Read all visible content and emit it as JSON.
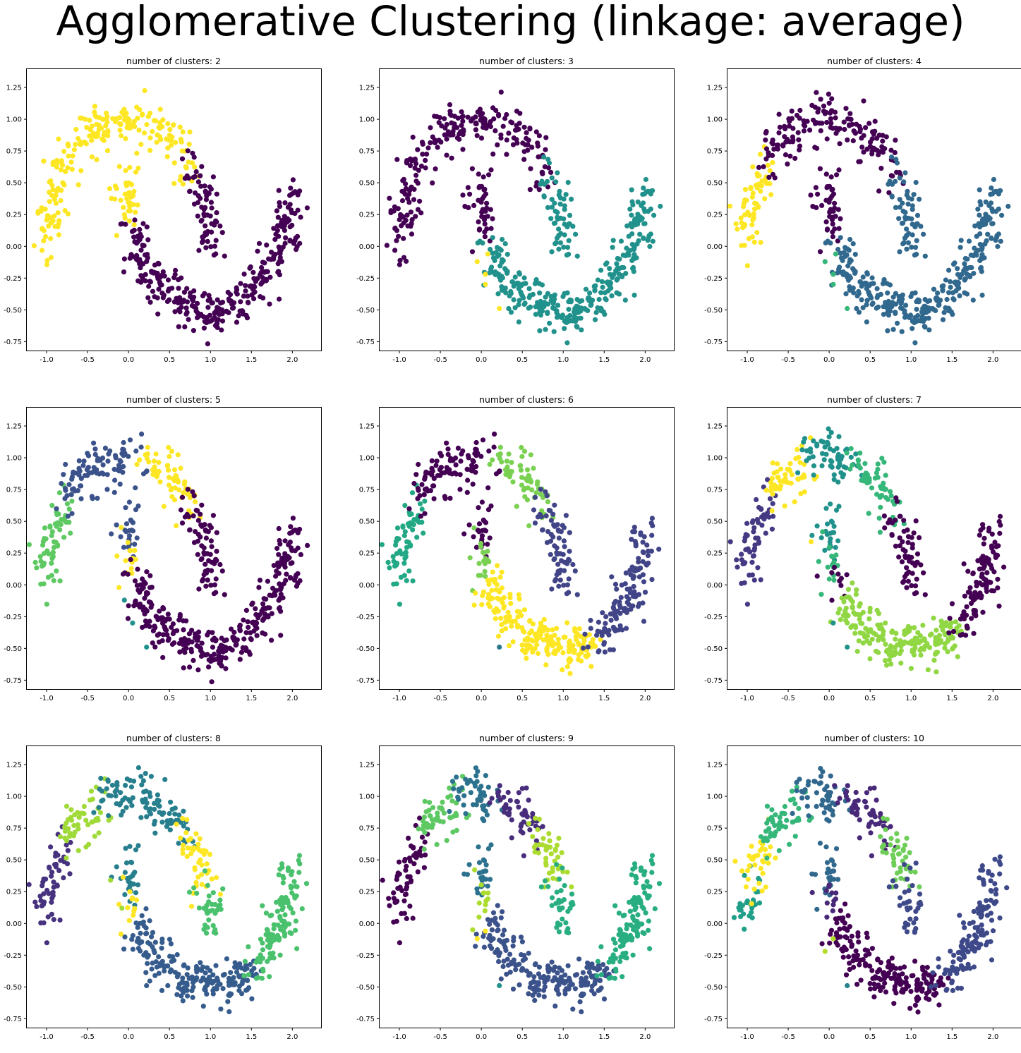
{
  "figure": {
    "title": "Agglomerative Clustering (linkage: average)"
  },
  "palette": {
    "2": [
      "#440154",
      "#fde725"
    ],
    "3": [
      "#440154",
      "#21918c",
      "#fde725"
    ],
    "4": [
      "#440154",
      "#31688e",
      "#35b779",
      "#fde725"
    ],
    "5": [
      "#440154",
      "#3b528b",
      "#21918c",
      "#5ec962",
      "#fde725"
    ],
    "6": [
      "#440154",
      "#414487",
      "#2a788e",
      "#22a884",
      "#7ad151",
      "#fde725"
    ],
    "7": [
      "#440154",
      "#443983",
      "#31688e",
      "#21918c",
      "#35b779",
      "#90d743",
      "#fde725"
    ],
    "8": [
      "#440154",
      "#46327e",
      "#365c8d",
      "#277f8e",
      "#1fa187",
      "#4ac16d",
      "#a0da39",
      "#fde725"
    ],
    "9": [
      "#440154",
      "#472d7b",
      "#3b528b",
      "#2c728e",
      "#21918c",
      "#28ae80",
      "#5ec962",
      "#addc30",
      "#fde725"
    ],
    "10": [
      "#440154",
      "#482878",
      "#3e4989",
      "#31688e",
      "#26828e",
      "#1f9e89",
      "#35b779",
      "#6ece58",
      "#b5de2b",
      "#fde725"
    ]
  },
  "chart_data": [
    {
      "type": "scatter",
      "title": "number of clusters: 2",
      "n_clusters": 2,
      "xlim": [
        -1.25,
        2.35
      ],
      "ylim": [
        -0.82,
        1.4
      ],
      "xticks": [
        "-1.0",
        "-0.5",
        "0.0",
        "0.5",
        "1.0",
        "1.5",
        "2.0"
      ],
      "yticks": [
        "-0.75",
        "-0.50",
        "-0.25",
        "0.00",
        "0.25",
        "0.50",
        "0.75",
        "1.00",
        "1.25"
      ],
      "segments": [
        {
          "t0": 0.0,
          "t1": 0.78,
          "c": 1,
          "n": 210
        },
        {
          "t0": 0.78,
          "t1": 1.0,
          "c": 0,
          "n": 70
        },
        {
          "t0": 0.0,
          "t1": 0.08,
          "c": 1,
          "n": 40
        },
        {
          "t0": 0.08,
          "t1": 1.0,
          "c": 0,
          "n": 330
        }
      ]
    },
    {
      "type": "scatter",
      "title": "number of clusters: 3",
      "n_clusters": 3,
      "xlim": [
        -1.25,
        2.35
      ],
      "ylim": [
        -0.82,
        1.4
      ],
      "xticks": [
        "-1.0",
        "-0.5",
        "0.0",
        "0.5",
        "1.0",
        "1.5",
        "2.0"
      ],
      "yticks": [
        "-0.75",
        "-0.50",
        "-0.25",
        "0.00",
        "0.25",
        "0.50",
        "0.75",
        "1.00",
        "1.25"
      ],
      "segments": [
        {
          "t0": 0.0,
          "t1": 0.8,
          "c": 0,
          "n": 220
        },
        {
          "t0": 0.8,
          "t1": 1.0,
          "c": 1,
          "n": 60
        },
        {
          "t0": 0.0,
          "t1": 0.13,
          "c": 0,
          "n": 45
        },
        {
          "t0": 0.13,
          "t1": 1.0,
          "c": 1,
          "n": 320
        }
      ],
      "outliers": [
        {
          "x": -0.05,
          "y": -0.12,
          "c": 2
        },
        {
          "x": 0.05,
          "y": -0.22,
          "c": 2
        },
        {
          "x": 0.08,
          "y": -0.06,
          "c": 2
        },
        {
          "x": 0.05,
          "y": -0.3,
          "c": 2
        },
        {
          "x": 0.22,
          "y": -0.49,
          "c": 2
        }
      ]
    },
    {
      "type": "scatter",
      "title": "number of clusters: 4",
      "n_clusters": 4,
      "xlim": [
        -1.25,
        2.35
      ],
      "ylim": [
        -0.82,
        1.4
      ],
      "xticks": [
        "-1.0",
        "-0.5",
        "0.0",
        "0.5",
        "1.0",
        "1.5",
        "2.0"
      ],
      "yticks": [
        "-0.75",
        "-0.50",
        "-0.25",
        "0.00",
        "0.25",
        "0.50",
        "0.75",
        "1.00",
        "1.25"
      ],
      "segments": [
        {
          "t0": 0.0,
          "t1": 0.23,
          "c": 3,
          "n": 60
        },
        {
          "t0": 0.23,
          "t1": 0.8,
          "c": 0,
          "n": 160
        },
        {
          "t0": 0.8,
          "t1": 1.0,
          "c": 1,
          "n": 60
        },
        {
          "t0": 0.0,
          "t1": 0.13,
          "c": 0,
          "n": 45
        },
        {
          "t0": 0.13,
          "t1": 1.0,
          "c": 1,
          "n": 320
        }
      ],
      "outliers": [
        {
          "x": -0.05,
          "y": -0.12,
          "c": 2
        },
        {
          "x": 0.05,
          "y": -0.22,
          "c": 2
        },
        {
          "x": 0.08,
          "y": -0.06,
          "c": 2
        },
        {
          "x": 0.05,
          "y": -0.3,
          "c": 2
        },
        {
          "x": 0.22,
          "y": -0.49,
          "c": 2
        }
      ]
    },
    {
      "type": "scatter",
      "title": "number of clusters: 5",
      "n_clusters": 5,
      "xlim": [
        -1.25,
        2.35
      ],
      "ylim": [
        -0.82,
        1.4
      ],
      "xticks": [
        "-1.0",
        "-0.5",
        "0.0",
        "0.5",
        "1.0",
        "1.5",
        "2.0"
      ],
      "yticks": [
        "-0.75",
        "-0.50",
        "-0.25",
        "0.00",
        "0.25",
        "0.50",
        "0.75",
        "1.00",
        "1.25"
      ],
      "segments": [
        {
          "t0": 0.0,
          "t1": 0.23,
          "c": 3,
          "n": 60
        },
        {
          "t0": 0.23,
          "t1": 0.55,
          "c": 1,
          "n": 95
        },
        {
          "t0": 0.55,
          "t1": 0.78,
          "c": 4,
          "n": 60
        },
        {
          "t0": 0.78,
          "t1": 1.0,
          "c": 0,
          "n": 70
        },
        {
          "t0": 0.0,
          "t1": 0.06,
          "c": 1,
          "n": 25
        },
        {
          "t0": 0.06,
          "t1": 0.11,
          "c": 4,
          "n": 15
        },
        {
          "t0": 0.11,
          "t1": 1.0,
          "c": 0,
          "n": 330
        }
      ],
      "outliers": [
        {
          "x": -0.05,
          "y": -0.12,
          "c": 2
        },
        {
          "x": 0.05,
          "y": -0.3,
          "c": 2
        },
        {
          "x": 0.22,
          "y": -0.49,
          "c": 2
        }
      ]
    },
    {
      "type": "scatter",
      "title": "number of clusters: 6",
      "n_clusters": 6,
      "xlim": [
        -1.25,
        2.35
      ],
      "ylim": [
        -0.82,
        1.4
      ],
      "xticks": [
        "-1.0",
        "-0.5",
        "0.0",
        "0.5",
        "1.0",
        "1.5",
        "2.0"
      ],
      "yticks": [
        "-0.75",
        "-0.50",
        "-0.25",
        "0.00",
        "0.25",
        "0.50",
        "0.75",
        "1.00",
        "1.25"
      ],
      "segments": [
        {
          "t0": 0.0,
          "t1": 0.23,
          "c": 3,
          "n": 60
        },
        {
          "t0": 0.23,
          "t1": 0.55,
          "c": 0,
          "n": 95
        },
        {
          "t0": 0.55,
          "t1": 0.78,
          "c": 4,
          "n": 60
        },
        {
          "t0": 0.78,
          "t1": 1.0,
          "c": 1,
          "n": 70
        },
        {
          "t0": 0.0,
          "t1": 0.06,
          "c": 0,
          "n": 25
        },
        {
          "t0": 0.06,
          "t1": 0.12,
          "c": 4,
          "n": 18
        },
        {
          "t0": 0.12,
          "t1": 0.62,
          "c": 5,
          "n": 200
        },
        {
          "t0": 0.62,
          "t1": 1.0,
          "c": 1,
          "n": 130
        }
      ],
      "outliers": [
        {
          "x": 0.22,
          "y": -0.49,
          "c": 2
        }
      ]
    },
    {
      "type": "scatter",
      "title": "number of clusters: 7",
      "n_clusters": 7,
      "xlim": [
        -1.25,
        2.35
      ],
      "ylim": [
        -0.82,
        1.4
      ],
      "xticks": [
        "-1.0",
        "-0.5",
        "0.0",
        "0.5",
        "1.0",
        "1.5",
        "2.0"
      ],
      "yticks": [
        "-0.75",
        "-0.50",
        "-0.25",
        "0.00",
        "0.25",
        "0.50",
        "0.75",
        "1.00",
        "1.25"
      ],
      "segments": [
        {
          "t0": 0.0,
          "t1": 0.25,
          "c": 1,
          "n": 60
        },
        {
          "t0": 0.25,
          "t1": 0.42,
          "c": 6,
          "n": 50
        },
        {
          "t0": 0.42,
          "t1": 0.6,
          "c": 3,
          "n": 60
        },
        {
          "t0": 0.6,
          "t1": 0.8,
          "c": 4,
          "n": 55
        },
        {
          "t0": 0.8,
          "t1": 1.0,
          "c": 0,
          "n": 60
        },
        {
          "t0": 0.0,
          "t1": 0.07,
          "c": 3,
          "n": 25
        },
        {
          "t0": 0.07,
          "t1": 0.13,
          "c": 4,
          "n": 15
        },
        {
          "t0": 0.13,
          "t1": 0.17,
          "c": 0,
          "n": 10
        },
        {
          "t0": 0.17,
          "t1": 0.7,
          "c": 5,
          "n": 200
        },
        {
          "t0": 0.7,
          "t1": 1.0,
          "c": 0,
          "n": 110
        }
      ],
      "outliers": [
        {
          "x": -0.22,
          "y": 0.34,
          "c": 6
        },
        {
          "x": 0.05,
          "y": -0.3,
          "c": 3
        },
        {
          "x": 0.22,
          "y": -0.49,
          "c": 3
        }
      ]
    },
    {
      "type": "scatter",
      "title": "number of clusters: 8",
      "n_clusters": 8,
      "xlim": [
        -1.25,
        2.35
      ],
      "ylim": [
        -0.82,
        1.4
      ],
      "xticks": [
        "-1.0",
        "-0.5",
        "0.0",
        "0.5",
        "1.0",
        "1.5",
        "2.0"
      ],
      "yticks": [
        "-0.75",
        "-0.50",
        "-0.25",
        "0.00",
        "0.25",
        "0.50",
        "0.75",
        "1.00",
        "1.25"
      ],
      "segments": [
        {
          "t0": 0.0,
          "t1": 0.22,
          "c": 1,
          "n": 55
        },
        {
          "t0": 0.22,
          "t1": 0.4,
          "c": 6,
          "n": 50
        },
        {
          "t0": 0.4,
          "t1": 0.75,
          "c": 3,
          "n": 100
        },
        {
          "t0": 0.75,
          "t1": 0.9,
          "c": 7,
          "n": 45
        },
        {
          "t0": 0.9,
          "t1": 1.0,
          "c": 5,
          "n": 35
        },
        {
          "t0": 0.0,
          "t1": 0.09,
          "c": 3,
          "n": 28
        },
        {
          "t0": 0.09,
          "t1": 0.13,
          "c": 7,
          "n": 12
        },
        {
          "t0": 0.13,
          "t1": 0.68,
          "c": 2,
          "n": 200
        },
        {
          "t0": 0.68,
          "t1": 1.0,
          "c": 5,
          "n": 125
        }
      ],
      "outliers": [
        {
          "x": -0.22,
          "y": 0.34,
          "c": 6
        },
        {
          "x": -0.08,
          "y": 0.12,
          "c": 6
        },
        {
          "x": 0.22,
          "y": -0.49,
          "c": 2
        }
      ]
    },
    {
      "type": "scatter",
      "title": "number of clusters: 9",
      "n_clusters": 9,
      "xlim": [
        -1.25,
        2.35
      ],
      "ylim": [
        -0.82,
        1.4
      ],
      "xticks": [
        "-1.0",
        "-0.5",
        "0.0",
        "0.5",
        "1.0",
        "1.5",
        "2.0"
      ],
      "yticks": [
        "-0.75",
        "-0.50",
        "-0.25",
        "0.00",
        "0.25",
        "0.50",
        "0.75",
        "1.00",
        "1.25"
      ],
      "segments": [
        {
          "t0": 0.0,
          "t1": 0.25,
          "c": 0,
          "n": 60
        },
        {
          "t0": 0.25,
          "t1": 0.42,
          "c": 6,
          "n": 50
        },
        {
          "t0": 0.42,
          "t1": 0.55,
          "c": 3,
          "n": 50
        },
        {
          "t0": 0.55,
          "t1": 0.75,
          "c": 1,
          "n": 55
        },
        {
          "t0": 0.75,
          "t1": 0.88,
          "c": 7,
          "n": 40
        },
        {
          "t0": 0.88,
          "t1": 1.0,
          "c": 5,
          "n": 35
        },
        {
          "t0": 0.0,
          "t1": 0.07,
          "c": 3,
          "n": 25
        },
        {
          "t0": 0.07,
          "t1": 0.12,
          "c": 7,
          "n": 12
        },
        {
          "t0": 0.12,
          "t1": 0.68,
          "c": 2,
          "n": 200
        },
        {
          "t0": 0.68,
          "t1": 1.0,
          "c": 5,
          "n": 125
        }
      ],
      "outliers": [
        {
          "x": -0.05,
          "y": -0.12,
          "c": 8
        },
        {
          "x": 0.05,
          "y": -0.06,
          "c": 8
        },
        {
          "x": 0.22,
          "y": -0.49,
          "c": 4
        }
      ]
    },
    {
      "type": "scatter",
      "title": "number of clusters: 10",
      "n_clusters": 10,
      "xlim": [
        -1.25,
        2.35
      ],
      "ylim": [
        -0.82,
        1.4
      ],
      "xticks": [
        "-1.0",
        "-0.5",
        "0.0",
        "0.5",
        "1.0",
        "1.5",
        "2.0"
      ],
      "yticks": [
        "-0.75",
        "-0.50",
        "-0.25",
        "0.00",
        "0.25",
        "0.50",
        "0.75",
        "1.00",
        "1.25"
      ],
      "segments": [
        {
          "t0": 0.0,
          "t1": 0.1,
          "c": 5,
          "n": 28
        },
        {
          "t0": 0.1,
          "t1": 0.22,
          "c": 9,
          "n": 35
        },
        {
          "t0": 0.22,
          "t1": 0.4,
          "c": 6,
          "n": 50
        },
        {
          "t0": 0.4,
          "t1": 0.55,
          "c": 3,
          "n": 50
        },
        {
          "t0": 0.55,
          "t1": 0.75,
          "c": 1,
          "n": 55
        },
        {
          "t0": 0.75,
          "t1": 0.88,
          "c": 7,
          "n": 40
        },
        {
          "t0": 0.88,
          "t1": 1.0,
          "c": 2,
          "n": 35
        },
        {
          "t0": 0.0,
          "t1": 0.07,
          "c": 3,
          "n": 25
        },
        {
          "t0": 0.07,
          "t1": 0.12,
          "c": 1,
          "n": 12
        },
        {
          "t0": 0.12,
          "t1": 0.62,
          "c": 0,
          "n": 190
        },
        {
          "t0": 0.62,
          "t1": 1.0,
          "c": 2,
          "n": 135
        }
      ],
      "outliers": [
        {
          "x": 0.05,
          "y": -0.12,
          "c": 8
        },
        {
          "x": -0.05,
          "y": -0.22,
          "c": 8
        },
        {
          "x": 0.22,
          "y": -0.49,
          "c": 4
        }
      ]
    }
  ]
}
